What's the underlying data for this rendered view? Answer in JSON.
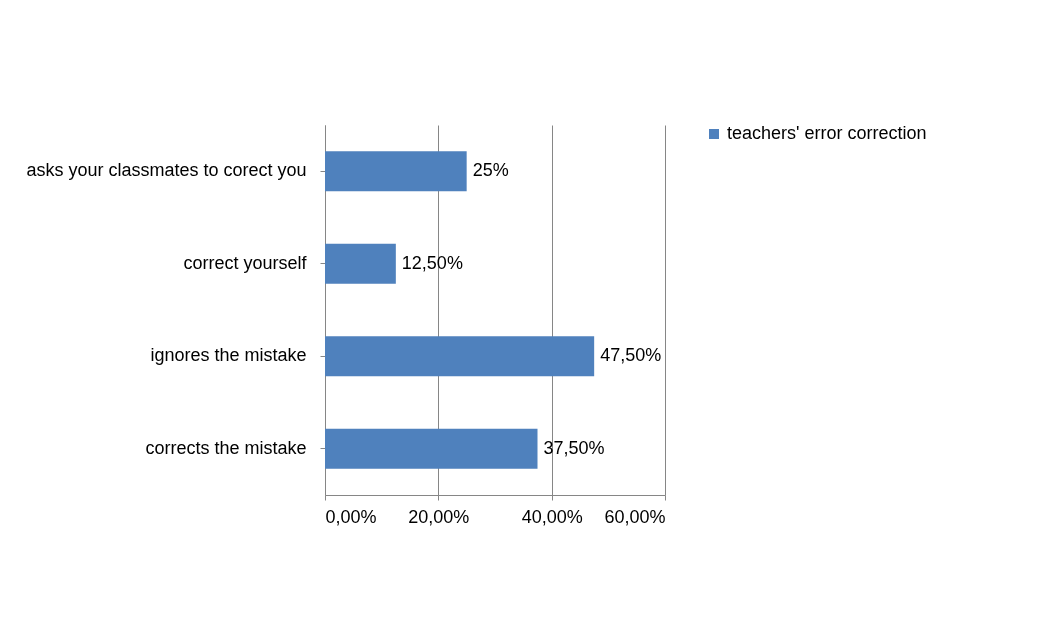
{
  "chart_data": {
    "type": "bar",
    "orientation": "horizontal",
    "categories": [
      "asks your classmates to corect you",
      "correct yourself",
      "ignores the mistake",
      "corrects the  mistake"
    ],
    "series": [
      {
        "name": "teachers' error correction",
        "color": "#4f81bd",
        "values": [
          25,
          12.5,
          47.5,
          37.5
        ],
        "value_labels": [
          "25%",
          "12,50%",
          "47,50%",
          "37,50%"
        ]
      }
    ],
    "xlim": [
      0,
      60
    ],
    "xticks": [
      {
        "value": 0,
        "label": "0,00%"
      },
      {
        "value": 20,
        "label": "20,00%"
      },
      {
        "value": 40,
        "label": "40,00%"
      },
      {
        "value": 60,
        "label": "60,00%"
      }
    ],
    "grid": "x",
    "legend": "right"
  }
}
